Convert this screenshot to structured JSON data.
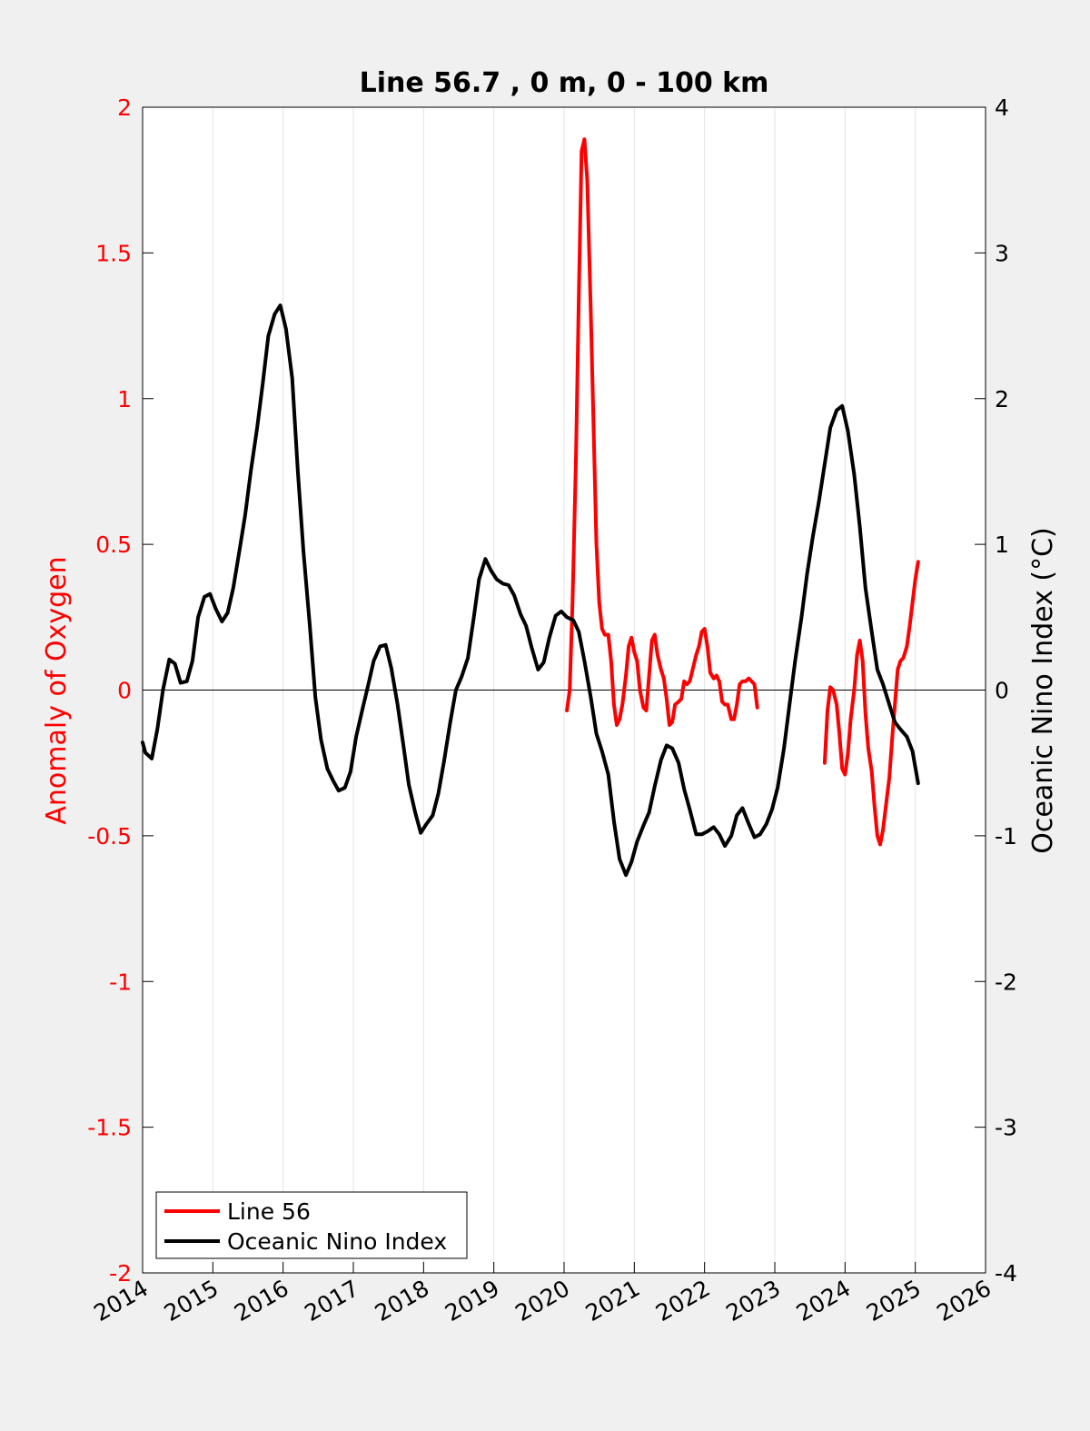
{
  "chart_data": {
    "type": "line",
    "title": "Line 56.7 , 0 m, 0 - 100 km",
    "xlabel": "",
    "ylabel": "Anomaly of Oxygen",
    "y2label": "Oceanic Nino Index (°C)",
    "xlim": [
      2014,
      2026
    ],
    "ylim": [
      -2,
      2
    ],
    "y2lim": [
      -4,
      4
    ],
    "x_ticks": [
      "2014",
      "2015",
      "2016",
      "2017",
      "2018",
      "2019",
      "2020",
      "2021",
      "2022",
      "2023",
      "2024",
      "2025",
      "2026"
    ],
    "y_ticks": [
      "-2",
      "-1.5",
      "-1",
      "-0.5",
      "0",
      "0.5",
      "1",
      "1.5",
      "2"
    ],
    "y2_ticks": [
      "-4",
      "-3",
      "-2",
      "-1",
      "0",
      "1",
      "2",
      "3",
      "4"
    ],
    "grid": "vertical",
    "legend_position": "bottom-left",
    "colors": {
      "line56": "#ff0000",
      "oni": "#000000",
      "left_axis": "#ff0000",
      "right_axis": "#000000"
    },
    "series": [
      {
        "name": "Line 56",
        "axis": "left",
        "color": "#ff0000",
        "segments": [
          [
            [
              2020.04,
              -0.07
            ],
            [
              2020.08,
              0.0
            ],
            [
              2020.12,
              0.3
            ],
            [
              2020.17,
              0.8
            ],
            [
              2020.21,
              1.35
            ],
            [
              2020.25,
              1.85
            ],
            [
              2020.29,
              1.89
            ],
            [
              2020.33,
              1.75
            ],
            [
              2020.38,
              1.3
            ],
            [
              2020.42,
              0.9
            ],
            [
              2020.46,
              0.5
            ],
            [
              2020.5,
              0.3
            ],
            [
              2020.54,
              0.21
            ],
            [
              2020.58,
              0.19
            ],
            [
              2020.63,
              0.19
            ],
            [
              2020.67,
              0.1
            ],
            [
              2020.71,
              -0.05
            ],
            [
              2020.75,
              -0.12
            ],
            [
              2020.79,
              -0.1
            ],
            [
              2020.83,
              -0.05
            ],
            [
              2020.88,
              0.05
            ],
            [
              2020.92,
              0.15
            ],
            [
              2020.96,
              0.18
            ],
            [
              2021.0,
              0.13
            ],
            [
              2021.04,
              0.1
            ],
            [
              2021.08,
              0.0
            ],
            [
              2021.13,
              -0.06
            ],
            [
              2021.17,
              -0.07
            ],
            [
              2021.21,
              0.05
            ],
            [
              2021.25,
              0.17
            ],
            [
              2021.29,
              0.19
            ],
            [
              2021.33,
              0.12
            ],
            [
              2021.38,
              0.07
            ],
            [
              2021.42,
              0.04
            ],
            [
              2021.46,
              -0.03
            ],
            [
              2021.5,
              -0.12
            ],
            [
              2021.54,
              -0.11
            ],
            [
              2021.58,
              -0.05
            ],
            [
              2021.63,
              -0.04
            ],
            [
              2021.67,
              -0.03
            ],
            [
              2021.71,
              0.03
            ],
            [
              2021.75,
              0.02
            ],
            [
              2021.79,
              0.03
            ],
            [
              2021.83,
              0.07
            ],
            [
              2021.88,
              0.12
            ],
            [
              2021.92,
              0.15
            ],
            [
              2021.96,
              0.2
            ],
            [
              2022.0,
              0.21
            ],
            [
              2022.04,
              0.15
            ],
            [
              2022.08,
              0.06
            ],
            [
              2022.13,
              0.04
            ],
            [
              2022.17,
              0.05
            ],
            [
              2022.21,
              0.03
            ],
            [
              2022.25,
              -0.04
            ],
            [
              2022.29,
              -0.05
            ],
            [
              2022.33,
              -0.05
            ],
            [
              2022.38,
              -0.1
            ],
            [
              2022.42,
              -0.1
            ],
            [
              2022.46,
              -0.05
            ],
            [
              2022.5,
              0.02
            ],
            [
              2022.54,
              0.03
            ],
            [
              2022.58,
              0.03
            ],
            [
              2022.63,
              0.04
            ],
            [
              2022.67,
              0.03
            ],
            [
              2022.71,
              0.02
            ],
            [
              2022.75,
              -0.06
            ]
          ],
          [
            [
              2023.71,
              -0.25
            ],
            [
              2023.75,
              -0.07
            ],
            [
              2023.79,
              0.01
            ],
            [
              2023.83,
              0.0
            ],
            [
              2023.88,
              -0.05
            ],
            [
              2023.92,
              -0.15
            ],
            [
              2023.96,
              -0.27
            ],
            [
              2024.0,
              -0.29
            ],
            [
              2024.04,
              -0.22
            ],
            [
              2024.08,
              -0.1
            ],
            [
              2024.13,
              0.0
            ],
            [
              2024.17,
              0.12
            ],
            [
              2024.21,
              0.17
            ],
            [
              2024.25,
              0.1
            ],
            [
              2024.29,
              -0.08
            ],
            [
              2024.33,
              -0.2
            ],
            [
              2024.38,
              -0.28
            ],
            [
              2024.42,
              -0.4
            ],
            [
              2024.46,
              -0.5
            ],
            [
              2024.5,
              -0.53
            ],
            [
              2024.54,
              -0.48
            ],
            [
              2024.58,
              -0.4
            ],
            [
              2024.63,
              -0.3
            ],
            [
              2024.67,
              -0.17
            ],
            [
              2024.71,
              -0.05
            ],
            [
              2024.75,
              0.07
            ],
            [
              2024.79,
              0.1
            ],
            [
              2024.83,
              0.11
            ],
            [
              2024.88,
              0.15
            ],
            [
              2024.92,
              0.22
            ],
            [
              2024.96,
              0.3
            ],
            [
              2025.0,
              0.38
            ],
            [
              2025.04,
              0.44
            ]
          ]
        ]
      },
      {
        "name": "Oceanic Nino Index",
        "axis": "right",
        "color": "#000000",
        "points": [
          [
            2014.0,
            -0.36
          ],
          [
            2014.04,
            -0.43
          ],
          [
            2014.13,
            -0.47
          ],
          [
            2014.21,
            -0.27
          ],
          [
            2014.29,
            0.0
          ],
          [
            2014.38,
            0.21
          ],
          [
            2014.46,
            0.18
          ],
          [
            2014.54,
            0.05
          ],
          [
            2014.63,
            0.06
          ],
          [
            2014.71,
            0.2
          ],
          [
            2014.79,
            0.5
          ],
          [
            2014.88,
            0.64
          ],
          [
            2014.96,
            0.66
          ],
          [
            2015.04,
            0.56
          ],
          [
            2015.13,
            0.47
          ],
          [
            2015.21,
            0.53
          ],
          [
            2015.29,
            0.7
          ],
          [
            2015.38,
            0.96
          ],
          [
            2015.46,
            1.2
          ],
          [
            2015.54,
            1.5
          ],
          [
            2015.63,
            1.8
          ],
          [
            2015.71,
            2.1
          ],
          [
            2015.79,
            2.43
          ],
          [
            2015.88,
            2.58
          ],
          [
            2015.96,
            2.64
          ],
          [
            2016.04,
            2.48
          ],
          [
            2016.13,
            2.14
          ],
          [
            2016.21,
            1.5
          ],
          [
            2016.29,
            0.95
          ],
          [
            2016.38,
            0.44
          ],
          [
            2016.46,
            -0.05
          ],
          [
            2016.54,
            -0.34
          ],
          [
            2016.63,
            -0.54
          ],
          [
            2016.71,
            -0.62
          ],
          [
            2016.79,
            -0.69
          ],
          [
            2016.88,
            -0.67
          ],
          [
            2016.96,
            -0.56
          ],
          [
            2017.04,
            -0.32
          ],
          [
            2017.13,
            -0.13
          ],
          [
            2017.21,
            0.03
          ],
          [
            2017.29,
            0.2
          ],
          [
            2017.38,
            0.3
          ],
          [
            2017.46,
            0.31
          ],
          [
            2017.54,
            0.15
          ],
          [
            2017.63,
            -0.1
          ],
          [
            2017.71,
            -0.37
          ],
          [
            2017.79,
            -0.65
          ],
          [
            2017.88,
            -0.84
          ],
          [
            2017.96,
            -0.98
          ],
          [
            2018.04,
            -0.92
          ],
          [
            2018.13,
            -0.86
          ],
          [
            2018.21,
            -0.71
          ],
          [
            2018.29,
            -0.49
          ],
          [
            2018.38,
            -0.22
          ],
          [
            2018.46,
            0.0
          ],
          [
            2018.54,
            0.09
          ],
          [
            2018.63,
            0.22
          ],
          [
            2018.71,
            0.48
          ],
          [
            2018.79,
            0.76
          ],
          [
            2018.88,
            0.9
          ],
          [
            2018.96,
            0.82
          ],
          [
            2019.04,
            0.76
          ],
          [
            2019.13,
            0.73
          ],
          [
            2019.21,
            0.72
          ],
          [
            2019.29,
            0.65
          ],
          [
            2019.38,
            0.52
          ],
          [
            2019.46,
            0.44
          ],
          [
            2019.54,
            0.29
          ],
          [
            2019.63,
            0.14
          ],
          [
            2019.71,
            0.19
          ],
          [
            2019.79,
            0.36
          ],
          [
            2019.88,
            0.51
          ],
          [
            2019.96,
            0.54
          ],
          [
            2020.04,
            0.5
          ],
          [
            2020.13,
            0.48
          ],
          [
            2020.21,
            0.4
          ],
          [
            2020.29,
            0.2
          ],
          [
            2020.38,
            -0.05
          ],
          [
            2020.46,
            -0.3
          ],
          [
            2020.54,
            -0.42
          ],
          [
            2020.63,
            -0.58
          ],
          [
            2020.71,
            -0.9
          ],
          [
            2020.79,
            -1.16
          ],
          [
            2020.88,
            -1.27
          ],
          [
            2020.96,
            -1.18
          ],
          [
            2021.04,
            -1.04
          ],
          [
            2021.13,
            -0.93
          ],
          [
            2021.21,
            -0.84
          ],
          [
            2021.29,
            -0.66
          ],
          [
            2021.38,
            -0.48
          ],
          [
            2021.46,
            -0.38
          ],
          [
            2021.54,
            -0.4
          ],
          [
            2021.63,
            -0.5
          ],
          [
            2021.71,
            -0.68
          ],
          [
            2021.79,
            -0.82
          ],
          [
            2021.88,
            -0.99
          ],
          [
            2021.96,
            -0.99
          ],
          [
            2022.04,
            -0.97
          ],
          [
            2022.13,
            -0.94
          ],
          [
            2022.21,
            -0.99
          ],
          [
            2022.29,
            -1.07
          ],
          [
            2022.38,
            -1.0
          ],
          [
            2022.46,
            -0.86
          ],
          [
            2022.54,
            -0.81
          ],
          [
            2022.63,
            -0.92
          ],
          [
            2022.71,
            -1.01
          ],
          [
            2022.79,
            -0.99
          ],
          [
            2022.88,
            -0.92
          ],
          [
            2022.96,
            -0.82
          ],
          [
            2023.04,
            -0.67
          ],
          [
            2023.13,
            -0.4
          ],
          [
            2023.21,
            -0.1
          ],
          [
            2023.29,
            0.2
          ],
          [
            2023.38,
            0.5
          ],
          [
            2023.46,
            0.8
          ],
          [
            2023.54,
            1.05
          ],
          [
            2023.63,
            1.3
          ],
          [
            2023.71,
            1.55
          ],
          [
            2023.79,
            1.8
          ],
          [
            2023.88,
            1.92
          ],
          [
            2023.96,
            1.95
          ],
          [
            2024.04,
            1.78
          ],
          [
            2024.13,
            1.48
          ],
          [
            2024.21,
            1.12
          ],
          [
            2024.29,
            0.7
          ],
          [
            2024.38,
            0.4
          ],
          [
            2024.46,
            0.14
          ],
          [
            2024.54,
            0.04
          ],
          [
            2024.63,
            -0.1
          ],
          [
            2024.71,
            -0.22
          ],
          [
            2024.79,
            -0.27
          ],
          [
            2024.88,
            -0.32
          ],
          [
            2024.96,
            -0.42
          ],
          [
            2025.04,
            -0.64
          ]
        ]
      }
    ]
  }
}
